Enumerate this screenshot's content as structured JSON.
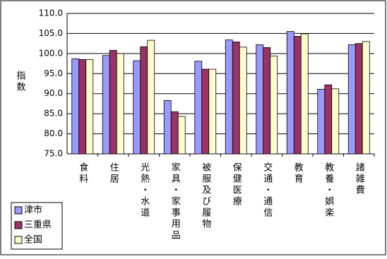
{
  "chart_data": {
    "type": "bar",
    "y_label": "指数",
    "categories": [
      "食料",
      "住居",
      "光熱・水道",
      "家具・家事用品",
      "被服及び履物",
      "保健医療",
      "交通・通信",
      "教育",
      "教養・娯楽",
      "諸雑費"
    ],
    "series": [
      {
        "name": "津市",
        "color": "#9999ff",
        "values": [
          98.7,
          99.5,
          98.2,
          88.3,
          98.1,
          103.4,
          102.2,
          105.5,
          91.1,
          102.2
        ]
      },
      {
        "name": "三重県",
        "color": "#993366",
        "values": [
          98.5,
          100.8,
          101.7,
          85.5,
          96.1,
          102.9,
          101.5,
          104.3,
          92.2,
          102.5
        ]
      },
      {
        "name": "全国",
        "color": "#ffffcc",
        "values": [
          98.5,
          100.0,
          103.3,
          84.3,
          96.1,
          101.6,
          99.4,
          104.9,
          91.2,
          103.0
        ]
      }
    ],
    "ylim": [
      75,
      110
    ],
    "yticks": [
      {
        "value": 75,
        "label": "75.0"
      },
      {
        "value": 80,
        "label": "80.0"
      },
      {
        "value": 85,
        "label": "85.0"
      },
      {
        "value": 90,
        "label": "90.0"
      },
      {
        "value": 95,
        "label": "95.0"
      },
      {
        "value": 100,
        "label": "100.0"
      },
      {
        "value": 105,
        "label": "105.0"
      },
      {
        "value": 110,
        "label": "110.0"
      }
    ],
    "grid": true
  }
}
